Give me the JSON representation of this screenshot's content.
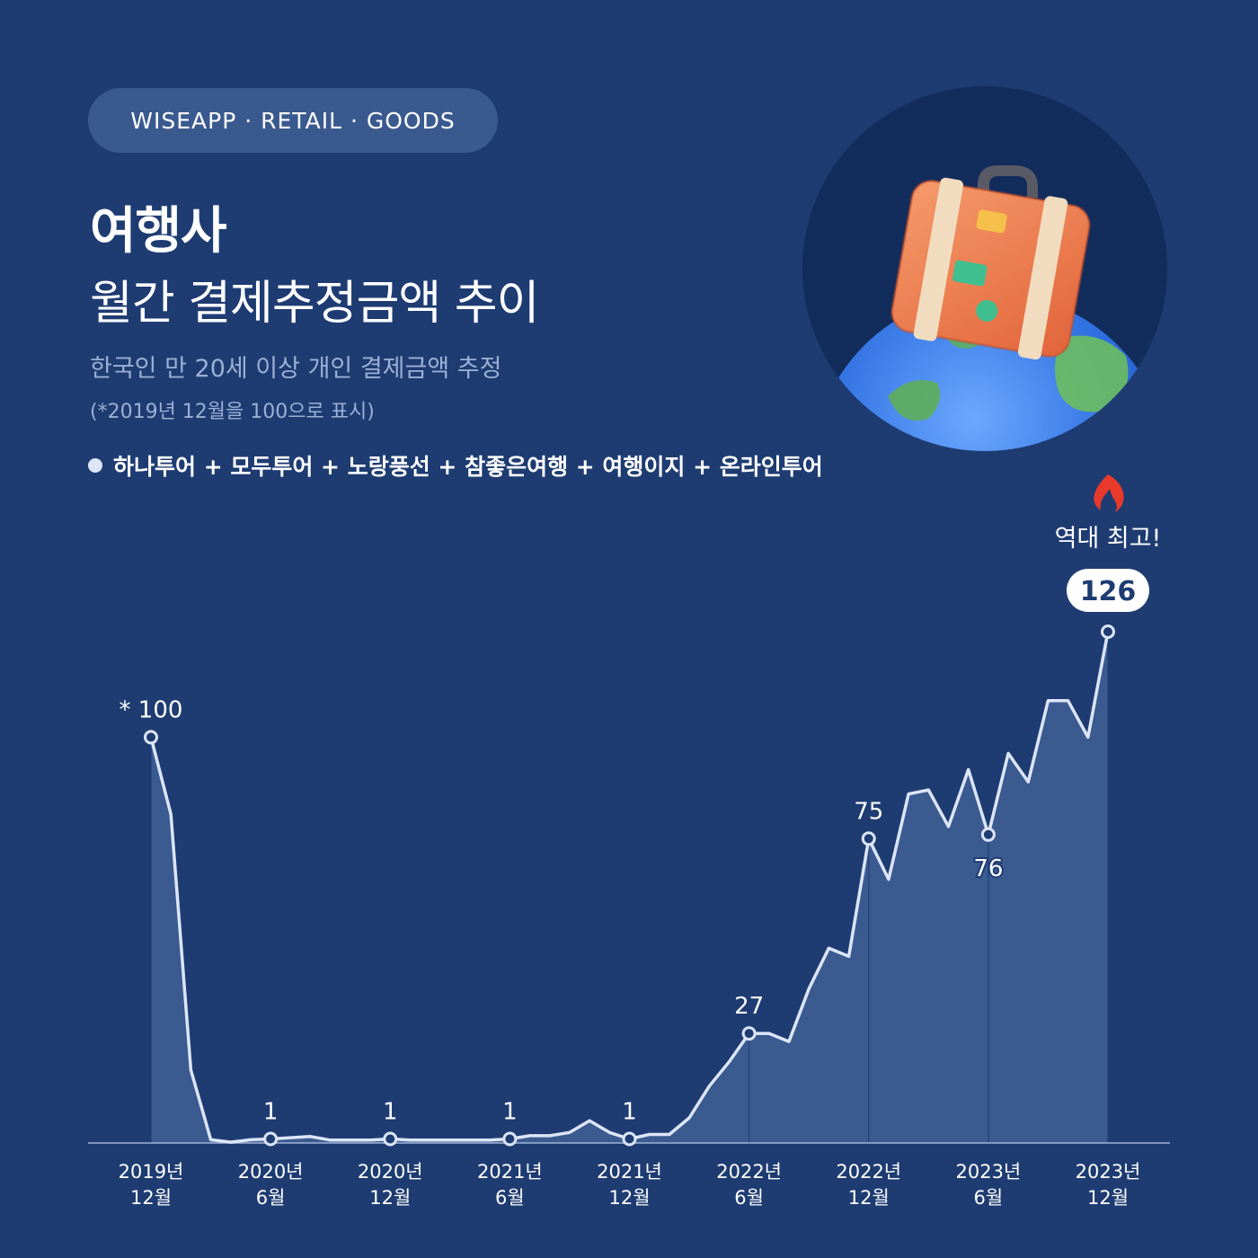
{
  "header": {
    "brand": "WISEAPP · RETAIL · GOODS",
    "title_line1": "여행사",
    "title_line2": "월간 결제추정금액 추이",
    "subtitle": "한국인 만 20세 이상 개인 결제금액 추정",
    "note": "(*2019년 12월을 100으로 표시)"
  },
  "legend": {
    "label": "하나투어 + 모두투어 + 노랑풍선 + 참좋은여행 + 여행이지 + 온라인투어"
  },
  "illustration": {
    "icon": "suitcase-on-globe-icon"
  },
  "colors": {
    "background": "#1e3c72",
    "line": "#dce6f7",
    "area": "#3f5f95",
    "fire": "#e8392b"
  },
  "chart_data": {
    "type": "area",
    "x": [
      "2019-12",
      "2020-01",
      "2020-02",
      "2020-03",
      "2020-04",
      "2020-05",
      "2020-06",
      "2020-07",
      "2020-08",
      "2020-09",
      "2020-10",
      "2020-11",
      "2020-12",
      "2021-01",
      "2021-02",
      "2021-03",
      "2021-04",
      "2021-05",
      "2021-06",
      "2021-07",
      "2021-08",
      "2021-09",
      "2021-10",
      "2021-11",
      "2021-12",
      "2022-01",
      "2022-02",
      "2022-03",
      "2022-04",
      "2022-05",
      "2022-06",
      "2022-07",
      "2022-08",
      "2022-09",
      "2022-10",
      "2022-11",
      "2022-12",
      "2023-01",
      "2023-02",
      "2023-03",
      "2023-04",
      "2023-05",
      "2023-06",
      "2023-07",
      "2023-08",
      "2023-09",
      "2023-10",
      "2023-11",
      "2023-12"
    ],
    "series": [
      {
        "values": [
          100,
          81,
          18,
          0.8,
          0.2,
          0.8,
          1,
          1.3,
          1.6,
          0.7,
          0.7,
          0.7,
          1,
          0.7,
          0.7,
          0.7,
          0.7,
          0.7,
          1,
          1.8,
          1.8,
          2.6,
          5.5,
          2.6,
          1,
          2.1,
          2.1,
          6.2,
          14,
          20,
          27,
          27,
          25,
          38,
          48,
          46,
          75,
          65,
          86,
          87,
          78,
          92,
          76,
          96,
          89,
          109,
          109,
          100,
          126
        ]
      }
    ],
    "point_labels": [
      {
        "x": "2019-12",
        "text": "* 100",
        "position": "above"
      },
      {
        "x": "2020-06",
        "text": "1",
        "position": "above"
      },
      {
        "x": "2020-12",
        "text": "1",
        "position": "above"
      },
      {
        "x": "2021-06",
        "text": "1",
        "position": "above"
      },
      {
        "x": "2021-12",
        "text": "1",
        "position": "above"
      },
      {
        "x": "2022-06",
        "text": "27",
        "position": "above"
      },
      {
        "x": "2022-12",
        "text": "75",
        "position": "above"
      },
      {
        "x": "2023-06",
        "text": "76",
        "position": "below"
      },
      {
        "x": "2023-12",
        "text": "126",
        "position": "badge"
      }
    ],
    "highlight_note": "역대 최고!",
    "x_ticks": [
      {
        "x": "2019-12",
        "line1": "2019년",
        "line2": "12월"
      },
      {
        "x": "2020-06",
        "line1": "2020년",
        "line2": "6월"
      },
      {
        "x": "2020-12",
        "line1": "2020년",
        "line2": "12월"
      },
      {
        "x": "2021-06",
        "line1": "2021년",
        "line2": "6월"
      },
      {
        "x": "2021-12",
        "line1": "2021년",
        "line2": "12월"
      },
      {
        "x": "2022-06",
        "line1": "2022년",
        "line2": "6월"
      },
      {
        "x": "2022-12",
        "line1": "2022년",
        "line2": "12월"
      },
      {
        "x": "2023-06",
        "line1": "2023년",
        "line2": "6월"
      },
      {
        "x": "2023-12",
        "line1": "2023년",
        "line2": "12월"
      }
    ],
    "title": "월간 결제추정금액 추이",
    "xlabel": "",
    "ylabel": "",
    "ylim": [
      0,
      126
    ],
    "grid": false,
    "legend_position": "top-left"
  }
}
